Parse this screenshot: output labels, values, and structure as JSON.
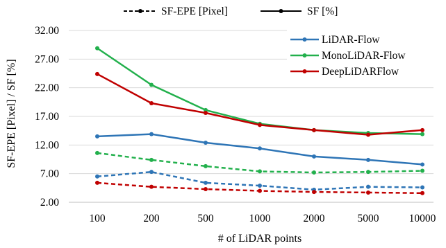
{
  "chart_data": {
    "type": "line",
    "x": [
      "100",
      "200",
      "500",
      "1000",
      "2000",
      "5000",
      "10000"
    ],
    "xlabel": "# of LiDAR points",
    "ylabel": "SF-EPE [Pixel] / SF [%]",
    "ylim": [
      2,
      32
    ],
    "yticks": [
      "2.00",
      "7.00",
      "12.00",
      "17.00",
      "22.00",
      "27.00",
      "32.00"
    ],
    "grid": "horizontal",
    "style_legend": {
      "placement": "top",
      "entries": [
        {
          "label": "SF-EPE [Pixel]",
          "style": "dashed"
        },
        {
          "label": "SF [%]",
          "style": "solid"
        }
      ]
    },
    "series_legend": {
      "placement": "top-right"
    },
    "series": [
      {
        "name": "LiDAR-Flow",
        "metric": "SF [%]",
        "style": "solid",
        "color": "#2e75b6",
        "values": [
          13.5,
          13.9,
          12.4,
          11.4,
          10.0,
          9.4,
          8.6
        ]
      },
      {
        "name": "MonoLiDAR-Flow",
        "metric": "SF [%]",
        "style": "solid",
        "color": "#22b04c",
        "values": [
          28.9,
          22.5,
          18.1,
          15.7,
          14.6,
          14.1,
          13.9
        ]
      },
      {
        "name": "DeepLiDARFlow",
        "metric": "SF [%]",
        "style": "solid",
        "color": "#c00000",
        "values": [
          24.4,
          19.3,
          17.6,
          15.5,
          14.6,
          13.8,
          14.6
        ]
      },
      {
        "name": "LiDAR-Flow",
        "metric": "SF-EPE [Pixel]",
        "style": "dashed",
        "color": "#2e75b6",
        "values": [
          6.5,
          7.3,
          5.4,
          4.9,
          4.2,
          4.7,
          4.6
        ]
      },
      {
        "name": "MonoLiDAR-Flow",
        "metric": "SF-EPE [Pixel]",
        "style": "dashed",
        "color": "#22b04c",
        "values": [
          10.6,
          9.4,
          8.3,
          7.4,
          7.2,
          7.3,
          7.5
        ]
      },
      {
        "name": "DeepLiDARFlow",
        "metric": "SF-EPE [Pixel]",
        "style": "dashed",
        "color": "#c00000",
        "values": [
          5.4,
          4.7,
          4.3,
          4.0,
          3.8,
          3.7,
          3.6
        ]
      }
    ]
  }
}
